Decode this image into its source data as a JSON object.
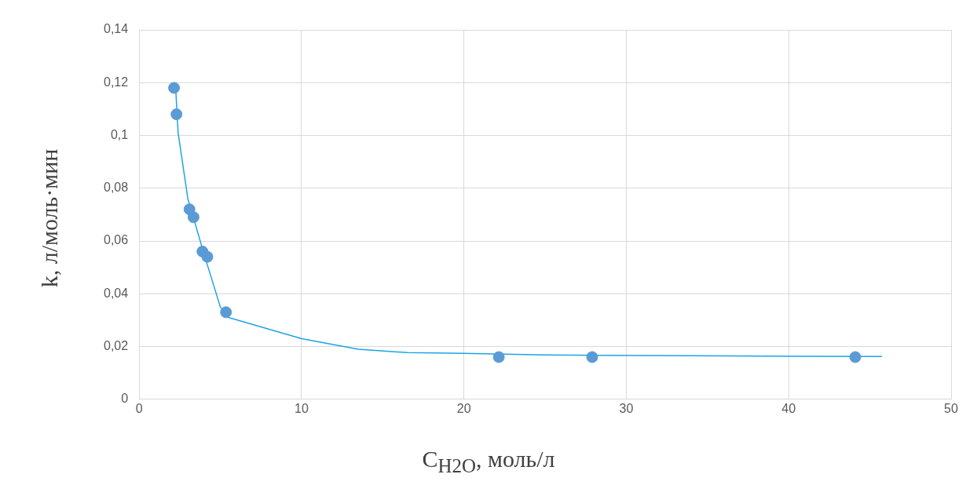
{
  "chart_data": {
    "type": "scatter",
    "xlabel": "C$_{H2O}$, моль/л",
    "ylabel": "k, л/моль·мин",
    "xlim": [
      0,
      50
    ],
    "xticks": [
      0,
      10,
      20,
      30,
      40,
      50
    ],
    "ylim": [
      0,
      0.14
    ],
    "yticks": [
      {
        "value": 0,
        "label": "0"
      },
      {
        "value": 0.02,
        "label": "0,02"
      },
      {
        "value": 0.04,
        "label": "0,04"
      },
      {
        "value": 0.06,
        "label": "0,06"
      },
      {
        "value": 0.08,
        "label": "0,08"
      },
      {
        "value": 0.1,
        "label": "0,1"
      },
      {
        "value": 0.12,
        "label": "0,12"
      },
      {
        "value": 0.14,
        "label": "0,14"
      }
    ],
    "grid": true,
    "legend": false,
    "marker": "circle",
    "series": [
      {
        "color": "#5b9bd5",
        "x": [
          2.15,
          2.3,
          3.1,
          3.35,
          3.9,
          4.2,
          5.35,
          22.15,
          27.9,
          44.1
        ],
        "values": [
          0.118,
          0.108,
          0.072,
          0.069,
          0.056,
          0.054,
          0.033,
          0.016,
          0.016,
          0.016
        ]
      },
      {
        "type": "line",
        "color": "#1fa3e6",
        "marker": "none",
        "x": [
          2.25,
          2.4,
          3.0,
          4.0,
          5.0,
          5.5,
          10,
          13.5,
          16.5,
          20,
          25,
          34,
          45.75
        ],
        "values": [
          0.118,
          0.101,
          0.076,
          0.055,
          0.035,
          0.031,
          0.023,
          0.019,
          0.0177,
          0.0174,
          0.0168,
          0.0165,
          0.0162
        ]
      }
    ]
  }
}
